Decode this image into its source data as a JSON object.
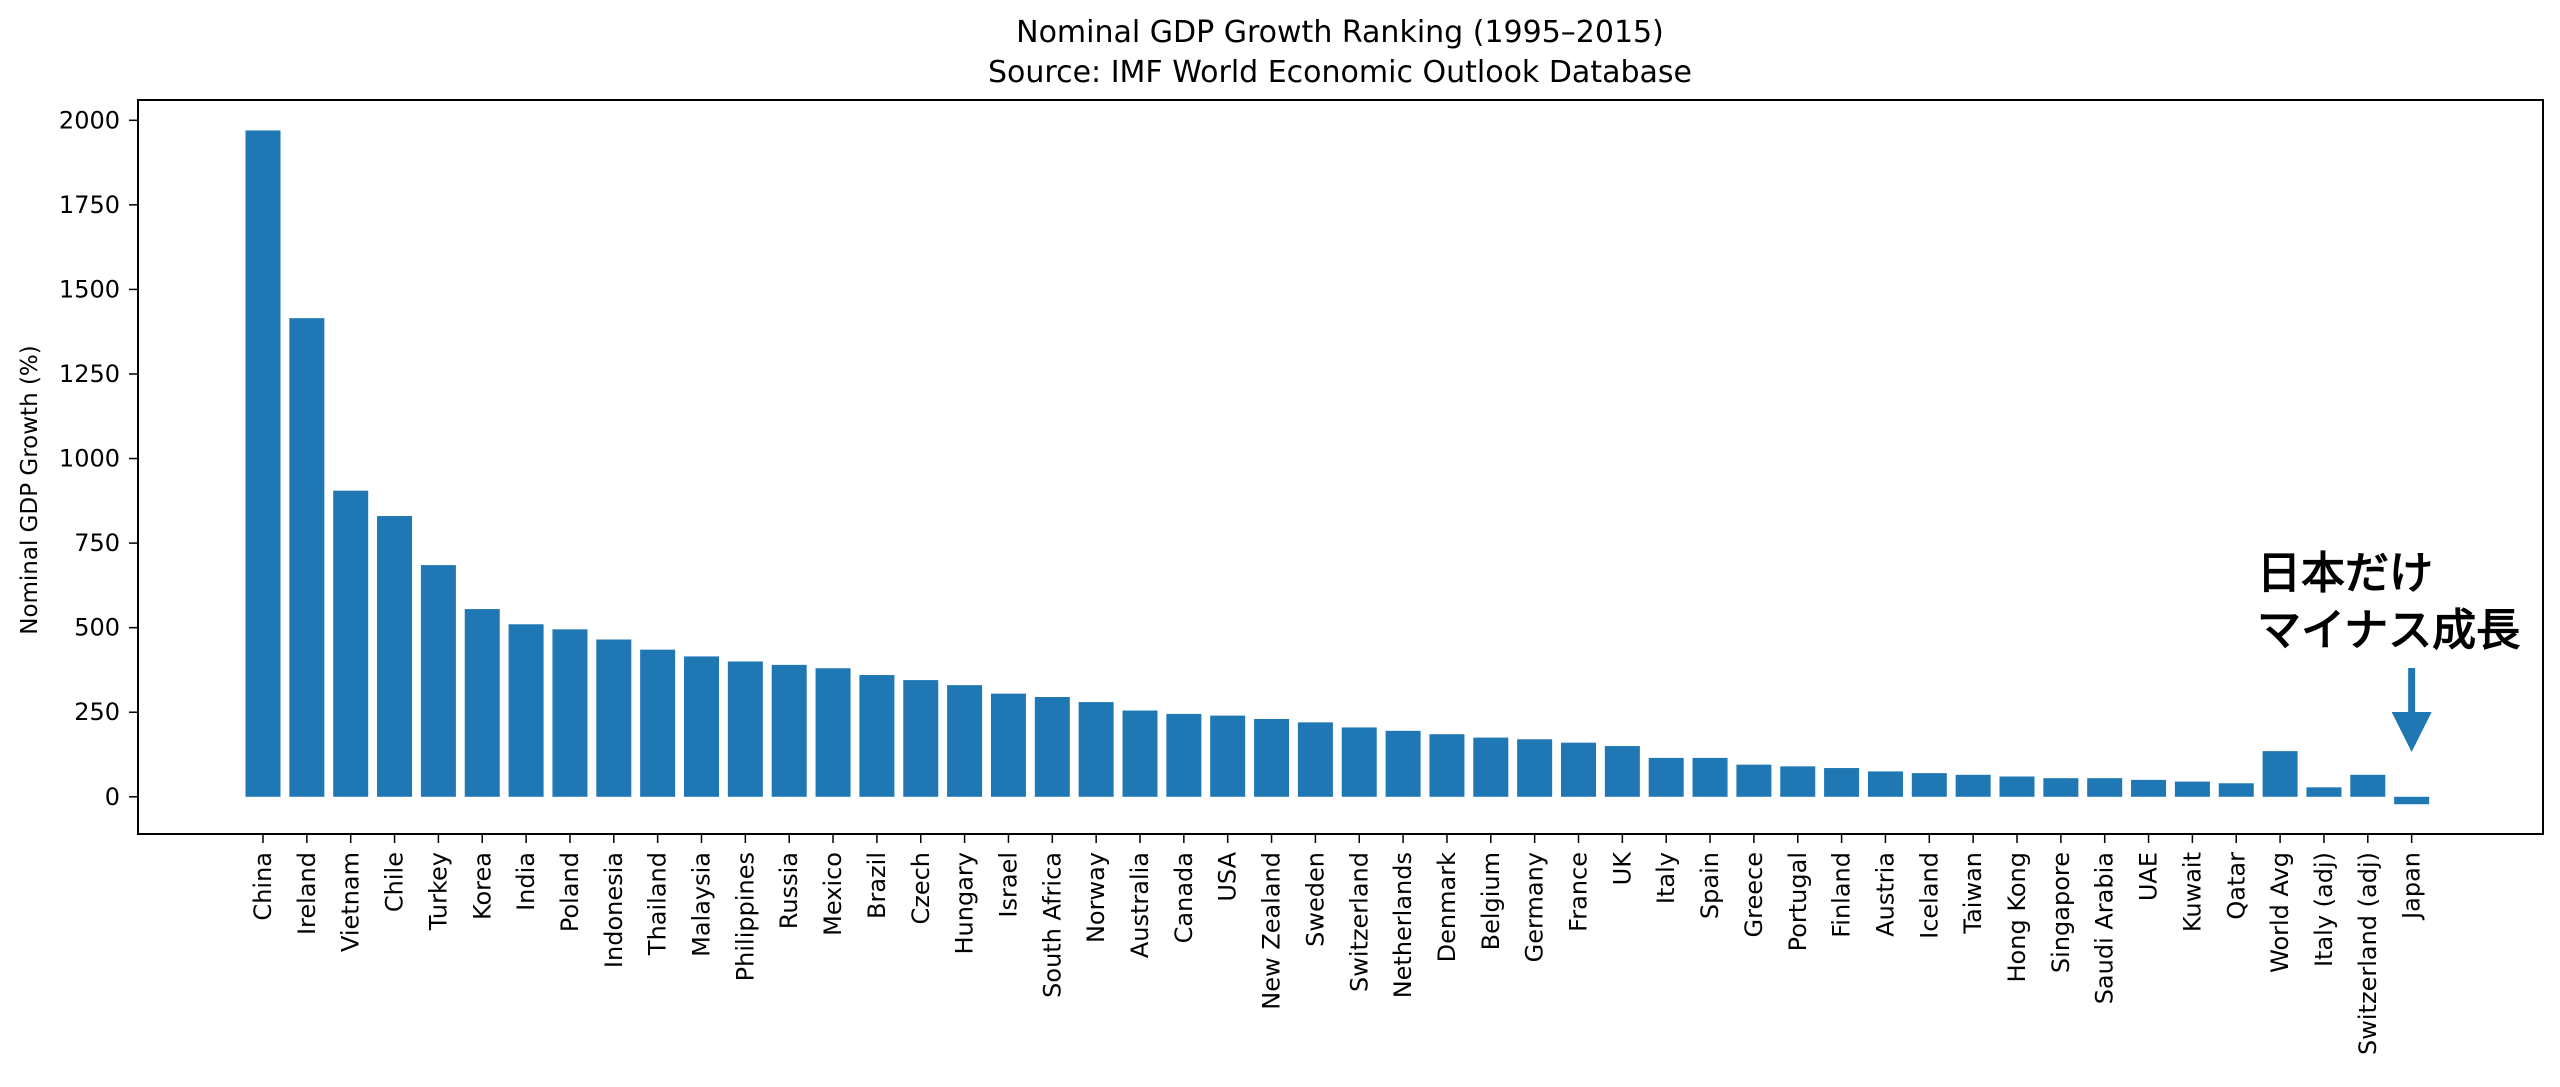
{
  "chart_data": {
    "type": "bar",
    "title": "Nominal GDP Growth Ranking (1995–2015)",
    "subtitle": "Source: IMF World Economic Outlook Database",
    "xlabel": "",
    "ylabel": "Nominal GDP Growth (%)",
    "ylim": [
      -110,
      2060
    ],
    "yticks": [
      0,
      250,
      500,
      750,
      1000,
      1250,
      1500,
      1750,
      2000
    ],
    "grid": false,
    "bar_color": "#1f77b4",
    "categories": [
      "China",
      "Ireland",
      "Vietnam",
      "Chile",
      "Turkey",
      "Korea",
      "India",
      "Poland",
      "Indonesia",
      "Thailand",
      "Malaysia",
      "Philippines",
      "Russia",
      "Mexico",
      "Brazil",
      "Czech",
      "Hungary",
      "Israel",
      "South Africa",
      "Norway",
      "Australia",
      "Canada",
      "USA",
      "New Zealand",
      "Sweden",
      "Switzerland",
      "Netherlands",
      "Denmark",
      "Belgium",
      "Germany",
      "France",
      "UK",
      "Italy",
      "Spain",
      "Greece",
      "Portugal",
      "Finland",
      "Austria",
      "Iceland",
      "Taiwan",
      "Hong Kong",
      "Singapore",
      "Saudi Arabia",
      "UAE",
      "Kuwait",
      "Qatar",
      "World Avg",
      "Italy (adj)",
      "Switzerland (adj)",
      "Japan"
    ],
    "values": [
      1970,
      1415,
      905,
      830,
      685,
      555,
      510,
      495,
      465,
      435,
      415,
      400,
      390,
      380,
      360,
      345,
      330,
      305,
      295,
      280,
      255,
      245,
      240,
      230,
      220,
      205,
      195,
      185,
      175,
      170,
      160,
      150,
      115,
      115,
      95,
      90,
      85,
      75,
      70,
      65,
      60,
      55,
      55,
      50,
      45,
      40,
      135,
      28,
      65,
      -22
    ],
    "annotation": {
      "line1": "日本だけ",
      "line2": "マイナス成長",
      "target": "Japan",
      "arrow_color": "#1f77b4"
    }
  }
}
